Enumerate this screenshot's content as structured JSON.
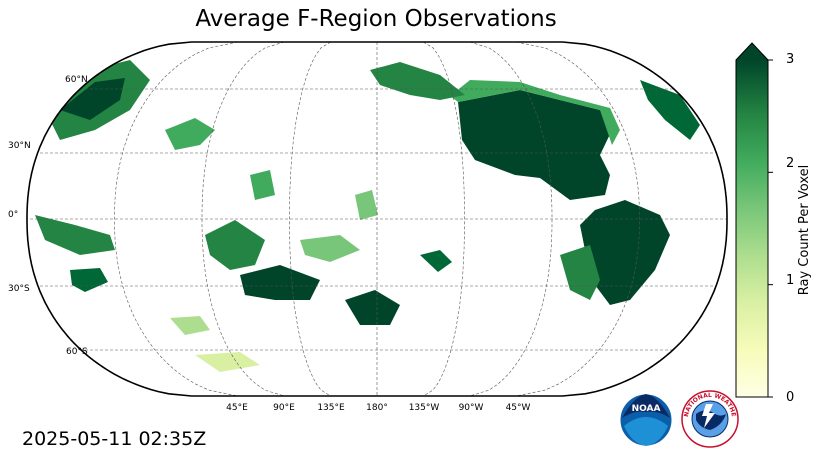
{
  "title": "Average F-Region Observations",
  "timestamp": "2025-05-11 02:35Z",
  "map": {
    "projection": "robinson",
    "central_longitude": 180,
    "latitude_labels": [
      "60°N",
      "30°N",
      "0°",
      "30°S",
      "60°S"
    ],
    "longitude_labels": [
      "45°E",
      "90°E",
      "135°E",
      "180°",
      "135°W",
      "90°W",
      "45°W"
    ]
  },
  "colorbar": {
    "label": "Ray Count Per Voxel",
    "ticks": [
      "0",
      "1",
      "2",
      "3"
    ],
    "min": 0,
    "max": 3,
    "extend": "max",
    "colormap": "YlGn",
    "colors": [
      "#ffffe5",
      "#f7fcb9",
      "#d9f0a3",
      "#addd8e",
      "#78c679",
      "#41ab5d",
      "#238443",
      "#006837",
      "#004529"
    ]
  },
  "logos": {
    "noaa": "NOAA",
    "nws": "NATIONAL WEATHER SERVICE"
  }
}
